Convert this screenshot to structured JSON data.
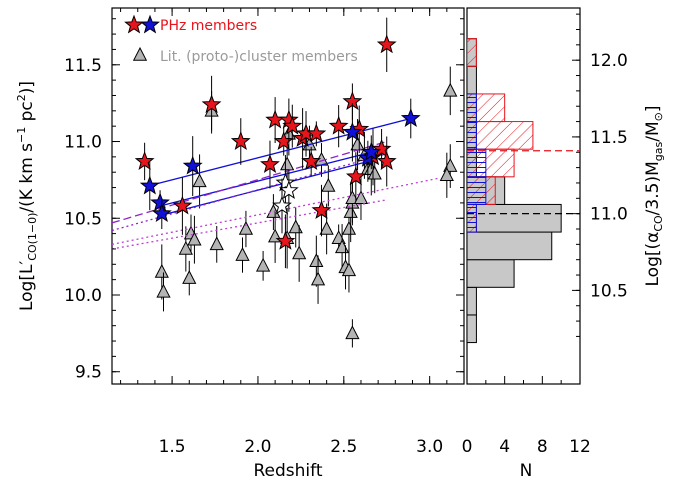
{
  "chart_data": [
    {
      "type": "scatter",
      "xlabel": "Redshift",
      "ylabel": "Log[L'CO(1-0)/(K km s-1 pc2)]",
      "xlim": [
        1.15,
        3.2
      ],
      "ylim": [
        9.42,
        11.87
      ],
      "xticks": [
        "1.5",
        "2.0",
        "2.5",
        "3.0"
      ],
      "yticks": [
        "9.5",
        "10.0",
        "10.5",
        "11.0",
        "11.5"
      ],
      "y2label": "Log[(αCO/3.5)Mgas/M⊙]",
      "y2ticks": [
        "10.5",
        "11.0",
        "11.5",
        "12.0"
      ],
      "legend": [
        {
          "label": "PHz members",
          "color": "#e8141c"
        },
        {
          "label": "Lit. (proto-)cluster members",
          "color": "#9a9a9a"
        }
      ],
      "series": [
        {
          "marker": "star",
          "color": "#e8141c",
          "points": [
            [
              1.34,
              10.87
            ],
            [
              1.56,
              10.58
            ],
            [
              1.73,
              11.24
            ],
            [
              1.9,
              11.0
            ],
            [
              2.07,
              10.85
            ],
            [
              2.1,
              11.14
            ],
            [
              2.15,
              11.0
            ],
            [
              2.16,
              10.35
            ],
            [
              2.18,
              11.14
            ],
            [
              2.2,
              11.1
            ],
            [
              2.26,
              11.02
            ],
            [
              2.28,
              11.05
            ],
            [
              2.31,
              10.87
            ],
            [
              2.34,
              11.05
            ],
            [
              2.37,
              10.55
            ],
            [
              2.47,
              11.1
            ],
            [
              2.55,
              11.26
            ],
            [
              2.57,
              10.77
            ],
            [
              2.59,
              11.08
            ],
            [
              2.67,
              10.9
            ],
            [
              2.72,
              10.95
            ],
            [
              2.75,
              10.87
            ],
            [
              2.75,
              11.63
            ]
          ]
        },
        {
          "marker": "star",
          "color": "#1010d8",
          "points": [
            [
              1.37,
              10.71
            ],
            [
              1.43,
              10.6
            ],
            [
              1.44,
              10.53
            ],
            [
              1.62,
              10.84
            ],
            [
              2.55,
              11.06
            ],
            [
              2.64,
              10.89
            ],
            [
              2.66,
              10.93
            ],
            [
              2.89,
              11.15
            ]
          ]
        },
        {
          "marker": "open-star",
          "color": "#ffffff",
          "points": [
            [
              2.16,
              10.73
            ],
            [
              2.18,
              10.68
            ],
            [
              2.14,
              10.58
            ]
          ]
        },
        {
          "marker": "triangle",
          "color": "#b4b4b4",
          "points": [
            [
              1.44,
              10.15
            ],
            [
              1.45,
              10.02
            ],
            [
              1.58,
              10.3
            ],
            [
              1.6,
              10.11
            ],
            [
              1.61,
              10.4
            ],
            [
              1.63,
              10.36
            ],
            [
              1.66,
              10.74
            ],
            [
              1.73,
              11.2
            ],
            [
              1.76,
              10.33
            ],
            [
              1.91,
              10.26
            ],
            [
              1.93,
              10.43
            ],
            [
              2.03,
              10.19
            ],
            [
              2.09,
              10.54
            ],
            [
              2.1,
              10.38
            ],
            [
              2.17,
              10.37
            ],
            [
              2.17,
              10.85
            ],
            [
              2.18,
              11.05
            ],
            [
              2.22,
              10.44
            ],
            [
              2.24,
              10.27
            ],
            [
              2.3,
              10.98
            ],
            [
              2.34,
              10.22
            ],
            [
              2.35,
              10.1
            ],
            [
              2.37,
              10.88
            ],
            [
              2.4,
              10.43
            ],
            [
              2.41,
              10.71
            ],
            [
              2.47,
              10.37
            ],
            [
              2.49,
              10.31
            ],
            [
              2.51,
              10.18
            ],
            [
              2.53,
              10.16
            ],
            [
              2.53,
              10.43
            ],
            [
              2.54,
              10.54
            ],
            [
              2.55,
              10.6
            ],
            [
              2.55,
              10.63
            ],
            [
              2.58,
              10.98
            ],
            [
              2.6,
              10.63
            ],
            [
              2.62,
              10.91
            ],
            [
              2.64,
              10.82
            ],
            [
              2.66,
              10.82
            ],
            [
              2.68,
              10.79
            ],
            [
              3.12,
              11.33
            ],
            [
              3.12,
              10.84
            ],
            [
              3.1,
              10.78
            ],
            [
              2.55,
              9.75
            ]
          ]
        }
      ],
      "fit_lines": [
        {
          "color": "#1010d8",
          "style": "solid",
          "points": [
            [
              1.36,
              10.71
            ],
            [
              2.89,
              11.15
            ]
          ]
        },
        {
          "color": "#1010d8",
          "style": "solid",
          "points": [
            [
              1.43,
              10.58
            ],
            [
              2.66,
              10.93
            ]
          ]
        },
        {
          "color": "#1010d8",
          "style": "solid",
          "points": [
            [
              1.44,
              10.52
            ],
            [
              2.64,
              10.87
            ]
          ]
        },
        {
          "color": "#8e24c8",
          "style": "dashed",
          "points": [
            [
              1.15,
              10.47
            ],
            [
              2.75,
              11.0
            ]
          ]
        },
        {
          "color": "#8e24c8",
          "style": "dotted",
          "points": [
            [
              1.15,
              10.42
            ],
            [
              2.75,
              10.92
            ]
          ]
        },
        {
          "color": "#c040d8",
          "style": "dotted",
          "points": [
            [
              1.15,
              10.33
            ],
            [
              3.05,
              10.76
            ]
          ]
        },
        {
          "color": "#c040d8",
          "style": "dotted",
          "points": [
            [
              1.15,
              10.3
            ],
            [
              2.75,
              10.62
            ]
          ]
        }
      ]
    },
    {
      "type": "bar",
      "orientation": "horizontal-histogram",
      "xlabel": "N",
      "xlim": [
        0,
        12
      ],
      "xticks": [
        "0",
        "4",
        "8",
        "12"
      ],
      "ylim": [
        9.42,
        11.87
      ],
      "series": [
        {
          "name": "gray",
          "color": "#c8c8c8",
          "bins": [
            [
              9.69,
              9.87,
              1
            ],
            [
              9.87,
              10.05,
              1
            ],
            [
              10.05,
              10.23,
              5
            ],
            [
              10.23,
              10.41,
              9
            ],
            [
              10.41,
              10.59,
              10
            ],
            [
              10.59,
              10.77,
              4
            ],
            [
              10.77,
              10.95,
              1
            ],
            [
              10.95,
              11.13,
              1
            ],
            [
              11.13,
              11.31,
              1
            ],
            [
              11.31,
              11.49,
              1
            ],
            [
              11.49,
              11.67,
              1
            ]
          ]
        },
        {
          "name": "red-hatched",
          "color": "#e8141c",
          "bins": [
            [
              10.41,
              10.59,
              1
            ],
            [
              10.59,
              10.77,
              3
            ],
            [
              10.77,
              10.95,
              5
            ],
            [
              10.95,
              11.13,
              7
            ],
            [
              11.13,
              11.31,
              4
            ],
            [
              11.49,
              11.67,
              1
            ]
          ]
        },
        {
          "name": "blue-hatched",
          "color": "#1010d8",
          "bins": [
            [
              10.41,
              10.59,
              1
            ],
            [
              10.59,
              10.77,
              2
            ],
            [
              10.77,
              10.95,
              2
            ],
            [
              10.95,
              11.13,
              1
            ],
            [
              11.13,
              11.31,
              1
            ]
          ]
        }
      ],
      "reference_lines": [
        {
          "color": "#000000",
          "style": "dashed",
          "y": 10.53
        },
        {
          "color": "#e8141c",
          "style": "dashed",
          "y": 10.94
        }
      ]
    }
  ]
}
